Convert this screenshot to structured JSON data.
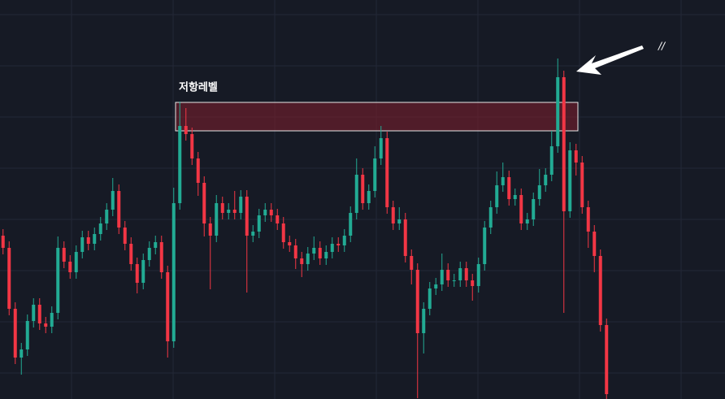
{
  "chart_data": {
    "type": "candlestick",
    "ylim": [
      0,
      491
    ],
    "up_color": "#22ab94",
    "down_color": "#f23645",
    "open": [
      201,
      186,
      111,
      51,
      61,
      96,
      116,
      93,
      89,
      106,
      186,
      169,
      156,
      181,
      199,
      191,
      203,
      216,
      233,
      256,
      211,
      191,
      166,
      143,
      171,
      186,
      193,
      156,
      71,
      241,
      336,
      326,
      296,
      266,
      216,
      201,
      241,
      229,
      233,
      229,
      249,
      201,
      206,
      226,
      233,
      226,
      216,
      193,
      189,
      173,
      166,
      179,
      186,
      173,
      181,
      191,
      189,
      201,
      229,
      276,
      241,
      256,
      296,
      321,
      236,
      216,
      221,
      176,
      159,
      81,
      111,
      136,
      141,
      159,
      146,
      146,
      161,
      146,
      139,
      166,
      211,
      236,
      263,
      273,
      246,
      251,
      216,
      221,
      246,
      263,
      276,
      311,
      396,
      231,
      306,
      291,
      236,
      206,
      176,
      91
    ],
    "high": [
      209,
      194,
      119,
      69,
      104,
      124,
      124,
      101,
      114,
      200,
      194,
      177,
      189,
      207,
      207,
      211,
      224,
      241,
      272,
      264,
      219,
      199,
      174,
      179,
      194,
      201,
      201,
      164,
      260,
      366,
      358,
      334,
      304,
      274,
      224,
      251,
      249,
      241,
      256,
      257,
      257,
      214,
      234,
      241,
      241,
      234,
      224,
      201,
      197,
      181,
      187,
      200,
      194,
      189,
      199,
      199,
      209,
      237,
      296,
      284,
      264,
      311,
      336,
      329,
      244,
      236,
      229,
      184,
      167,
      119,
      144,
      149,
      179,
      167,
      154,
      169,
      169,
      154,
      174,
      219,
      244,
      280,
      291,
      281,
      259,
      259,
      229,
      254,
      283,
      284,
      330,
      419,
      404,
      316,
      314,
      299,
      244,
      214,
      184,
      99
    ],
    "low": [
      178,
      103,
      43,
      30,
      53,
      88,
      85,
      81,
      81,
      98,
      161,
      148,
      148,
      173,
      183,
      183,
      195,
      208,
      225,
      203,
      183,
      158,
      130,
      135,
      163,
      178,
      148,
      51,
      63,
      233,
      318,
      288,
      250,
      200,
      135,
      193,
      221,
      221,
      221,
      221,
      131,
      193,
      198,
      218,
      218,
      208,
      185,
      181,
      160,
      150,
      158,
      171,
      165,
      165,
      173,
      181,
      181,
      193,
      221,
      233,
      233,
      248,
      288,
      228,
      208,
      208,
      168,
      141,
      1,
      56,
      103,
      128,
      133,
      138,
      138,
      138,
      138,
      121,
      131,
      158,
      203,
      228,
      255,
      238,
      238,
      208,
      208,
      213,
      238,
      255,
      268,
      303,
      106,
      223,
      275,
      228,
      186,
      156,
      83,
      0
    ],
    "close": [
      186,
      111,
      51,
      61,
      96,
      116,
      93,
      89,
      106,
      186,
      169,
      156,
      181,
      199,
      191,
      203,
      216,
      233,
      256,
      211,
      191,
      166,
      143,
      171,
      186,
      193,
      156,
      71,
      241,
      336,
      326,
      296,
      266,
      216,
      201,
      241,
      229,
      233,
      229,
      249,
      201,
      206,
      226,
      233,
      226,
      216,
      193,
      189,
      173,
      166,
      179,
      186,
      173,
      181,
      191,
      189,
      201,
      229,
      276,
      241,
      256,
      296,
      321,
      236,
      216,
      221,
      176,
      159,
      81,
      111,
      136,
      141,
      159,
      146,
      146,
      161,
      146,
      139,
      166,
      211,
      236,
      263,
      273,
      246,
      251,
      216,
      221,
      246,
      263,
      276,
      311,
      396,
      231,
      306,
      291,
      236,
      206,
      176,
      91,
      6
    ],
    "zone": {
      "label": "저항레벨",
      "low": 330,
      "high": 365
    },
    "annotation": "//"
  }
}
